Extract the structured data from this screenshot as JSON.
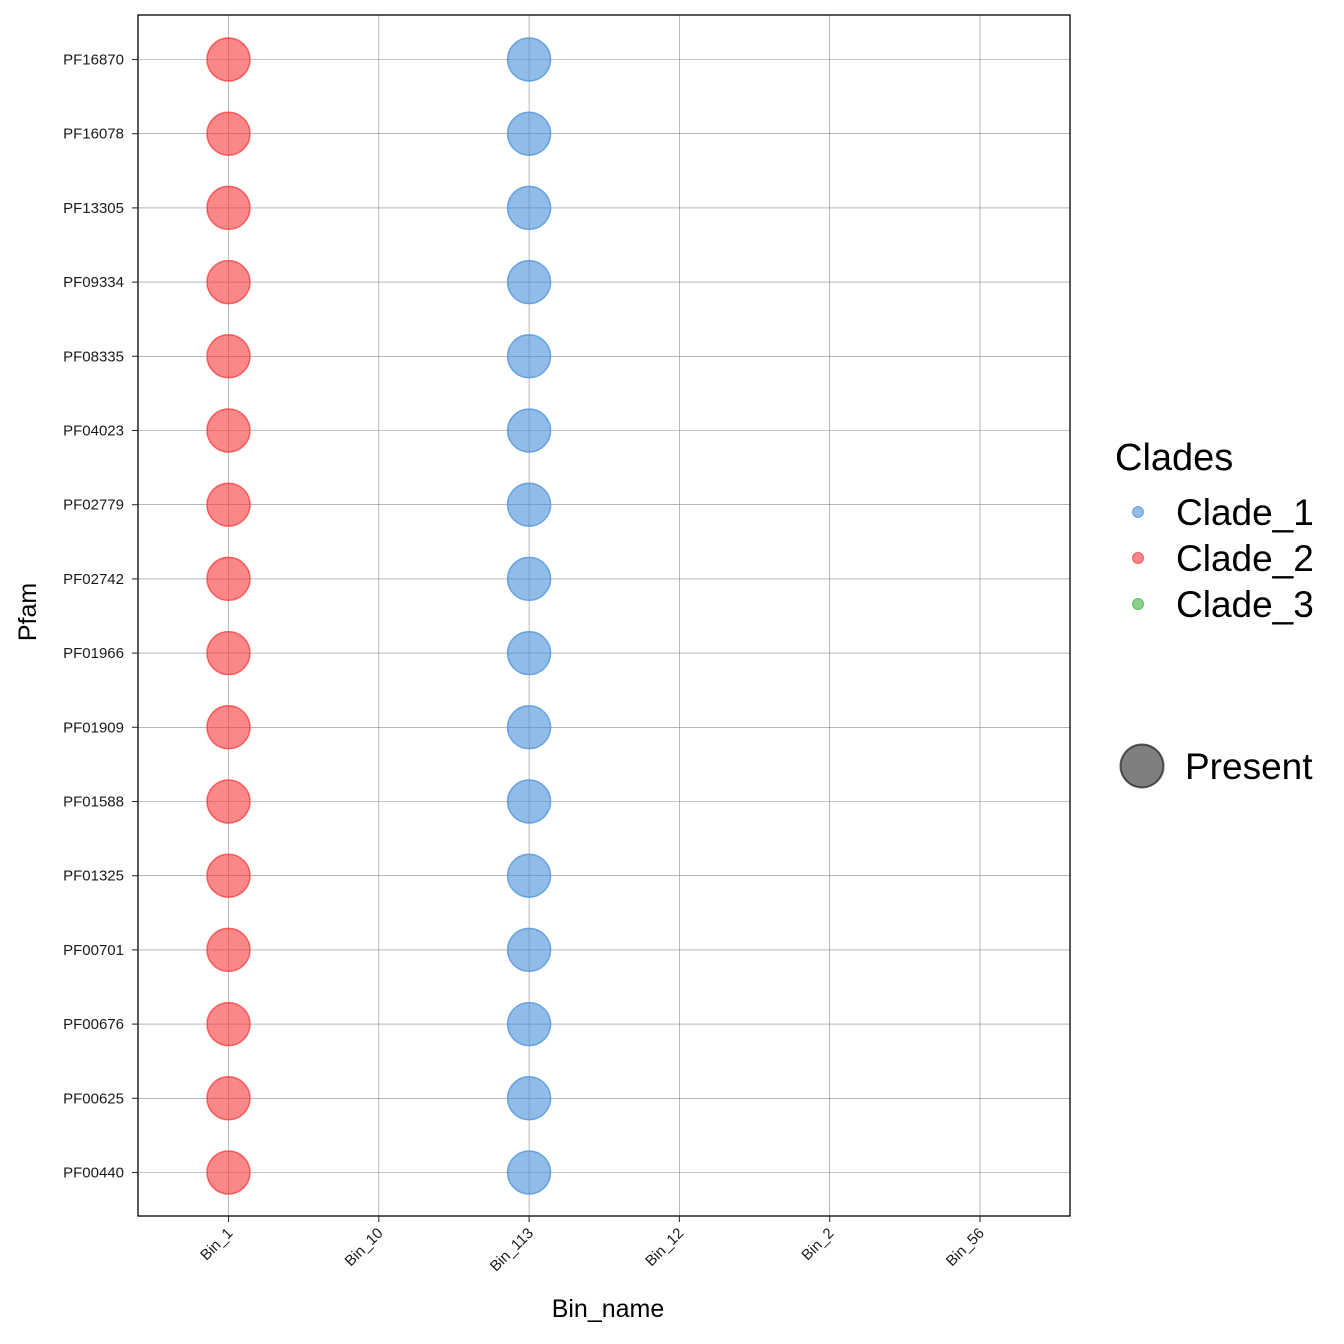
{
  "chart_data": {
    "type": "scatter",
    "xlabel": "Bin_name",
    "ylabel": "Pfam",
    "x_categories": [
      "Bin_1",
      "Bin_10",
      "Bin_113",
      "Bin_12",
      "Bin_2",
      "Bin_56"
    ],
    "y_categories": [
      "PF16870",
      "PF16078",
      "PF13305",
      "PF09334",
      "PF08335",
      "PF04023",
      "PF02779",
      "PF02742",
      "PF01966",
      "PF01909",
      "PF01588",
      "PF01325",
      "PF00701",
      "PF00676",
      "PF00625",
      "PF00440"
    ],
    "grid": true,
    "legend_position": "right",
    "series": [
      {
        "name": "Clade_1",
        "color": "#4A90D9",
        "x": "Bin_113",
        "present_in": [
          "PF16870",
          "PF16078",
          "PF13305",
          "PF09334",
          "PF08335",
          "PF04023",
          "PF02779",
          "PF02742",
          "PF01966",
          "PF01909",
          "PF01588",
          "PF01325",
          "PF00701",
          "PF00676",
          "PF00625",
          "PF00440"
        ]
      },
      {
        "name": "Clade_2",
        "color": "#F8383A",
        "x": "Bin_1",
        "present_in": [
          "PF16870",
          "PF16078",
          "PF13305",
          "PF09334",
          "PF08335",
          "PF04023",
          "PF02779",
          "PF02742",
          "PF01966",
          "PF01909",
          "PF01588",
          "PF01325",
          "PF00701",
          "PF00676",
          "PF00625",
          "PF00440"
        ]
      },
      {
        "name": "Clade_3",
        "color": "#3FAF3F",
        "x": null,
        "present_in": []
      }
    ],
    "legend": {
      "color_title": "Clades",
      "color_entries": [
        "Clade_1",
        "Clade_2",
        "Clade_3"
      ],
      "size_entry": "Present"
    }
  }
}
